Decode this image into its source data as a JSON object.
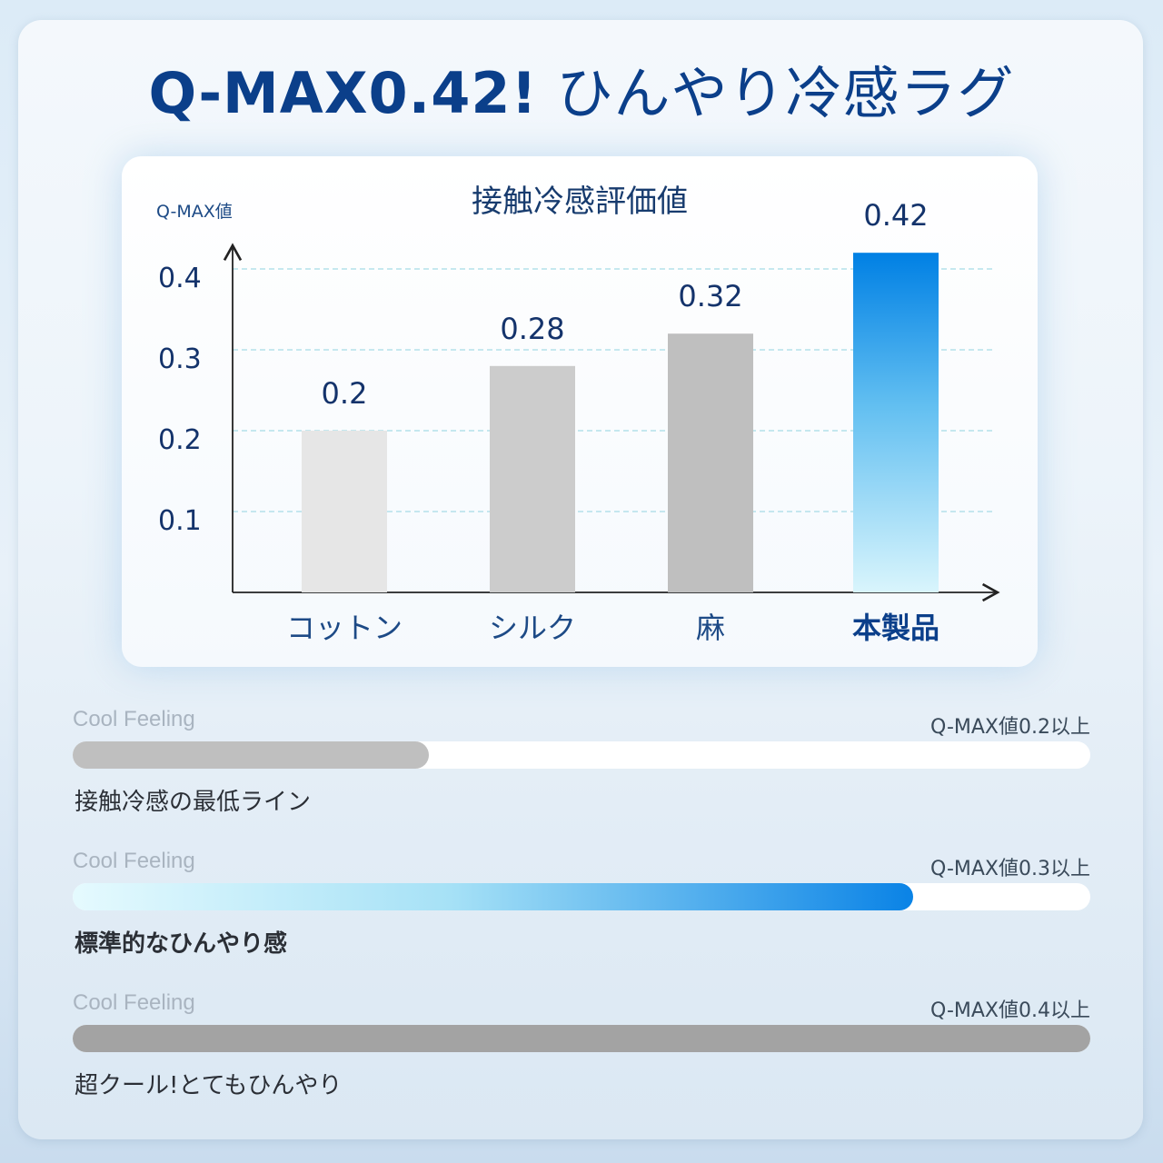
{
  "header": {
    "title_strong": "Q-MAX0.42!",
    "title_rest": " ひんやり冷感ラグ"
  },
  "chart_data": {
    "type": "bar",
    "title": "接触冷感評価値",
    "ylabel": "Q-MAX値",
    "categories": [
      "コットン",
      "シルク",
      "麻",
      "本製品"
    ],
    "values": [
      0.2,
      0.28,
      0.32,
      0.42
    ],
    "value_labels": [
      "0.2",
      "0.28",
      "0.32",
      "0.42"
    ],
    "yticks": [
      "0.1",
      "0.2",
      "0.3",
      "0.4"
    ],
    "ylim": [
      0,
      0.45
    ],
    "grid": true,
    "highlight_category": "本製品",
    "colors": [
      "#e6e6e6",
      "#cccccc",
      "#bfbfbf",
      "#0a83e6"
    ]
  },
  "levels": [
    {
      "tag": "Cool Feeling",
      "threshold": "Q-MAX値0.2以上",
      "description": "接触冷感の最低ライン",
      "fill_fraction": 0.35,
      "style": "grey"
    },
    {
      "tag": "Cool Feeling",
      "threshold": "Q-MAX値0.3以上",
      "description": "標準的なひんやり感",
      "fill_fraction": 0.826,
      "style": "blue"
    },
    {
      "tag": "Cool Feeling",
      "threshold": "Q-MAX値0.4以上",
      "description": "超クール!とてもひんやり",
      "fill_fraction": 1.0,
      "style": "dark"
    }
  ]
}
